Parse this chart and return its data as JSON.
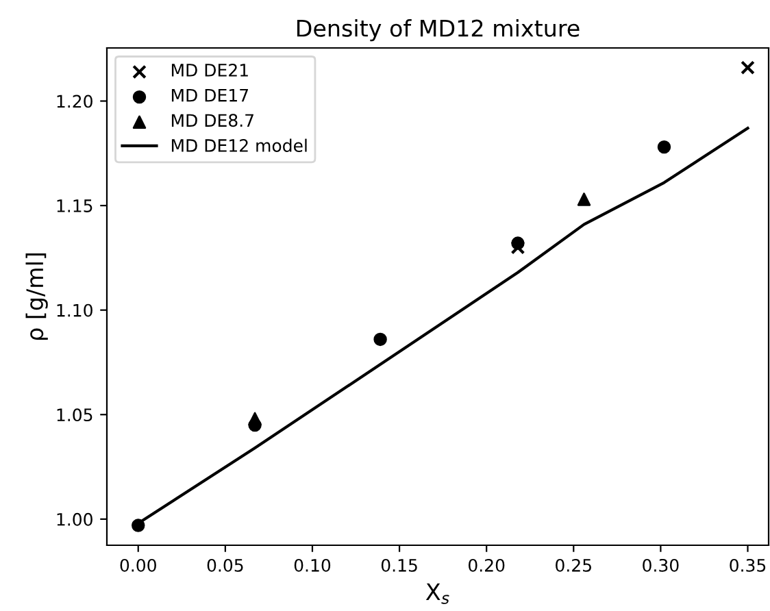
{
  "chart_data": {
    "type": "scatter",
    "title": "Density of MD12 mixture",
    "xlabel": "X$_{s}$",
    "ylabel": "ρ [g/ml]",
    "xlim": [
      -0.018,
      0.362
    ],
    "ylim": [
      0.9875,
      1.2254
    ],
    "xticks": [
      {
        "value": 0,
        "label": "0.00"
      },
      {
        "value": 0.05,
        "label": "0.05"
      },
      {
        "value": 0.1,
        "label": "0.10"
      },
      {
        "value": 0.15,
        "label": "0.15"
      },
      {
        "value": 0.2,
        "label": "0.20"
      },
      {
        "value": 0.25,
        "label": "0.25"
      },
      {
        "value": 0.3,
        "label": "0.30"
      },
      {
        "value": 0.35,
        "label": "0.35"
      }
    ],
    "yticks": [
      {
        "value": 1.0,
        "label": "1.00"
      },
      {
        "value": 1.05,
        "label": "1.05"
      },
      {
        "value": 1.1,
        "label": "1.10"
      },
      {
        "value": 1.15,
        "label": "1.15"
      },
      {
        "value": 1.2,
        "label": "1.20"
      }
    ],
    "grid": false,
    "legend": "top left",
    "series": [
      {
        "name": "MD DE21",
        "marker": "cross",
        "color": "#000000",
        "x": [
          0.218,
          0.35
        ],
        "values": [
          1.13,
          1.216
        ]
      },
      {
        "name": "MD DE17",
        "marker": "circle",
        "color": "#000000",
        "x": [
          0,
          0.067,
          0.139,
          0.218,
          0.302
        ],
        "values": [
          0.997,
          1.045,
          1.086,
          1.132,
          1.178
        ]
      },
      {
        "name": "MD DE8.7",
        "marker": "triangle",
        "color": "#000000",
        "x": [
          0.067,
          0.256
        ],
        "values": [
          1.048,
          1.153
        ]
      },
      {
        "name": "MD DE12 model",
        "type": "line",
        "line_style": "solid",
        "color": "#000000",
        "x": [
          0,
          0.067,
          0.139,
          0.218,
          0.256,
          0.302,
          0.35
        ],
        "values": [
          0.998,
          1.034,
          1.074,
          1.118,
          1.141,
          1.161,
          1.187
        ]
      }
    ]
  }
}
